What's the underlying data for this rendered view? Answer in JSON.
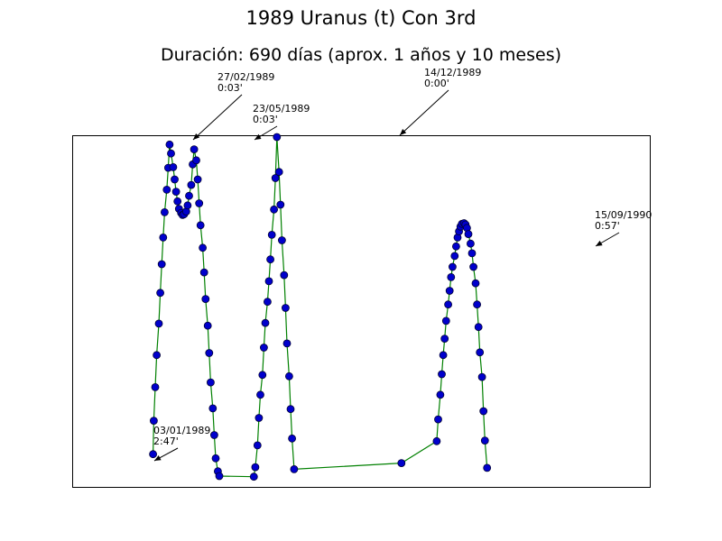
{
  "chart_data": {
    "type": "line",
    "title": "1989 Uranus (t) Con 3rd",
    "subtitle": "Duración: 690 días (aprox. 1 años y 10 meses)",
    "xlabel": "",
    "ylabel": "",
    "axes_visible": false,
    "grid": false,
    "line_color": "#008000",
    "marker_fill": "#0000cc",
    "marker_edge": "#000033",
    "x_domain": [
      "1989-01-03",
      "1990-11-24"
    ],
    "series": [
      {
        "points": [
          {
            "d": "1989-01-03",
            "v": 7.2
          },
          {
            "d": "1989-01-04",
            "v": 17.0
          },
          {
            "d": "1989-01-06",
            "v": 26.8
          },
          {
            "d": "1989-01-08",
            "v": 36.2
          },
          {
            "d": "1989-01-11",
            "v": 45.4
          },
          {
            "d": "1989-01-13",
            "v": 54.4
          },
          {
            "d": "1989-01-15",
            "v": 62.8
          },
          {
            "d": "1989-01-17",
            "v": 70.6
          },
          {
            "d": "1989-01-19",
            "v": 78.0
          },
          {
            "d": "1989-01-22",
            "v": 84.6
          },
          {
            "d": "1989-01-24",
            "v": 91.0
          },
          {
            "d": "1989-01-26",
            "v": 97.8
          },
          {
            "d": "1989-01-28",
            "v": 95.2
          },
          {
            "d": "1989-01-31",
            "v": 91.2
          },
          {
            "d": "1989-02-02",
            "v": 87.6
          },
          {
            "d": "1989-02-04",
            "v": 84.0
          },
          {
            "d": "1989-02-06",
            "v": 81.2
          },
          {
            "d": "1989-02-08",
            "v": 79.0
          },
          {
            "d": "1989-02-11",
            "v": 77.8
          },
          {
            "d": "1989-02-13",
            "v": 77.2
          },
          {
            "d": "1989-02-15",
            "v": 77.4
          },
          {
            "d": "1989-02-18",
            "v": 78.2
          },
          {
            "d": "1989-02-20",
            "v": 80.0
          },
          {
            "d": "1989-02-22",
            "v": 82.8
          },
          {
            "d": "1989-02-25",
            "v": 86.0
          },
          {
            "d": "1989-02-27",
            "v": 92.0
          },
          {
            "d": "1989-03-01",
            "v": 96.4
          },
          {
            "d": "1989-03-04",
            "v": 93.2
          },
          {
            "d": "1989-03-06",
            "v": 87.6
          },
          {
            "d": "1989-03-08",
            "v": 80.6
          },
          {
            "d": "1989-03-10",
            "v": 74.2
          },
          {
            "d": "1989-03-13",
            "v": 67.6
          },
          {
            "d": "1989-03-15",
            "v": 60.4
          },
          {
            "d": "1989-03-17",
            "v": 52.6
          },
          {
            "d": "1989-03-20",
            "v": 44.8
          },
          {
            "d": "1989-03-22",
            "v": 36.8
          },
          {
            "d": "1989-03-24",
            "v": 28.2
          },
          {
            "d": "1989-03-27",
            "v": 20.6
          },
          {
            "d": "1989-03-29",
            "v": 12.8
          },
          {
            "d": "1989-03-31",
            "v": 6.0
          },
          {
            "d": "1989-04-03",
            "v": 2.2
          },
          {
            "d": "1989-04-05",
            "v": 0.8
          },
          {
            "d": "1989-05-23",
            "v": 0.6
          },
          {
            "d": "1989-05-25",
            "v": 3.4
          },
          {
            "d": "1989-05-28",
            "v": 9.8
          },
          {
            "d": "1989-05-30",
            "v": 17.8
          },
          {
            "d": "1989-06-01",
            "v": 24.6
          },
          {
            "d": "1989-06-04",
            "v": 30.4
          },
          {
            "d": "1989-06-06",
            "v": 38.4
          },
          {
            "d": "1989-06-08",
            "v": 45.6
          },
          {
            "d": "1989-06-11",
            "v": 51.8
          },
          {
            "d": "1989-06-13",
            "v": 57.8
          },
          {
            "d": "1989-06-15",
            "v": 64.2
          },
          {
            "d": "1989-06-17",
            "v": 71.4
          },
          {
            "d": "1989-06-20",
            "v": 78.8
          },
          {
            "d": "1989-06-22",
            "v": 88.0
          },
          {
            "d": "1989-06-24",
            "v": 100.0
          },
          {
            "d": "1989-06-27",
            "v": 89.8
          },
          {
            "d": "1989-06-29",
            "v": 80.2
          },
          {
            "d": "1989-07-01",
            "v": 69.8
          },
          {
            "d": "1989-07-04",
            "v": 59.6
          },
          {
            "d": "1989-07-06",
            "v": 50.0
          },
          {
            "d": "1989-07-08",
            "v": 39.6
          },
          {
            "d": "1989-07-11",
            "v": 30.0
          },
          {
            "d": "1989-07-13",
            "v": 20.4
          },
          {
            "d": "1989-07-15",
            "v": 11.8
          },
          {
            "d": "1989-07-18",
            "v": 2.8
          },
          {
            "d": "1989-12-14",
            "v": 4.6
          },
          {
            "d": "1990-02-01",
            "v": 11.0
          },
          {
            "d": "1990-02-03",
            "v": 17.4
          },
          {
            "d": "1990-02-06",
            "v": 24.6
          },
          {
            "d": "1990-02-08",
            "v": 30.6
          },
          {
            "d": "1990-02-10",
            "v": 36.2
          },
          {
            "d": "1990-02-12",
            "v": 41.0
          },
          {
            "d": "1990-02-14",
            "v": 46.2
          },
          {
            "d": "1990-02-17",
            "v": 51.0
          },
          {
            "d": "1990-02-19",
            "v": 55.0
          },
          {
            "d": "1990-02-21",
            "v": 59.0
          },
          {
            "d": "1990-02-23",
            "v": 62.0
          },
          {
            "d": "1990-02-26",
            "v": 65.2
          },
          {
            "d": "1990-02-28",
            "v": 68.0
          },
          {
            "d": "1990-03-02",
            "v": 70.6
          },
          {
            "d": "1990-03-04",
            "v": 72.4
          },
          {
            "d": "1990-03-06",
            "v": 73.8
          },
          {
            "d": "1990-03-08",
            "v": 74.6
          },
          {
            "d": "1990-03-11",
            "v": 74.8
          },
          {
            "d": "1990-03-13",
            "v": 74.4
          },
          {
            "d": "1990-03-15",
            "v": 73.4
          },
          {
            "d": "1990-03-17",
            "v": 71.6
          },
          {
            "d": "1990-03-20",
            "v": 68.8
          },
          {
            "d": "1990-03-22",
            "v": 66.0
          },
          {
            "d": "1990-03-24",
            "v": 62.0
          },
          {
            "d": "1990-03-27",
            "v": 57.2
          },
          {
            "d": "1990-03-29",
            "v": 51.0
          },
          {
            "d": "1990-03-31",
            "v": 44.4
          },
          {
            "d": "1990-04-02",
            "v": 37.0
          },
          {
            "d": "1990-04-05",
            "v": 29.8
          },
          {
            "d": "1990-04-07",
            "v": 19.8
          },
          {
            "d": "1990-04-09",
            "v": 11.2
          },
          {
            "d": "1990-04-12",
            "v": 3.2
          }
        ]
      }
    ],
    "annotations": [
      {
        "date_label": "03/01/1989",
        "value_label": "2:47'",
        "d": "1989-01-03",
        "v": 7.2
      },
      {
        "date_label": "27/02/1989",
        "value_label": "0:03'",
        "d": "1989-01-26",
        "v": 97.8
      },
      {
        "date_label": "23/05/1989",
        "value_label": "0:03'",
        "d": "1989-03-01",
        "v": 96.4
      },
      {
        "date_label": "14/12/1989",
        "value_label": "0:00'",
        "d": "1989-06-24",
        "v": 100.0
      },
      {
        "date_label": "15/09/1990",
        "value_label": "0:57'",
        "d": "1990-03-11",
        "v": 74.8
      }
    ]
  }
}
